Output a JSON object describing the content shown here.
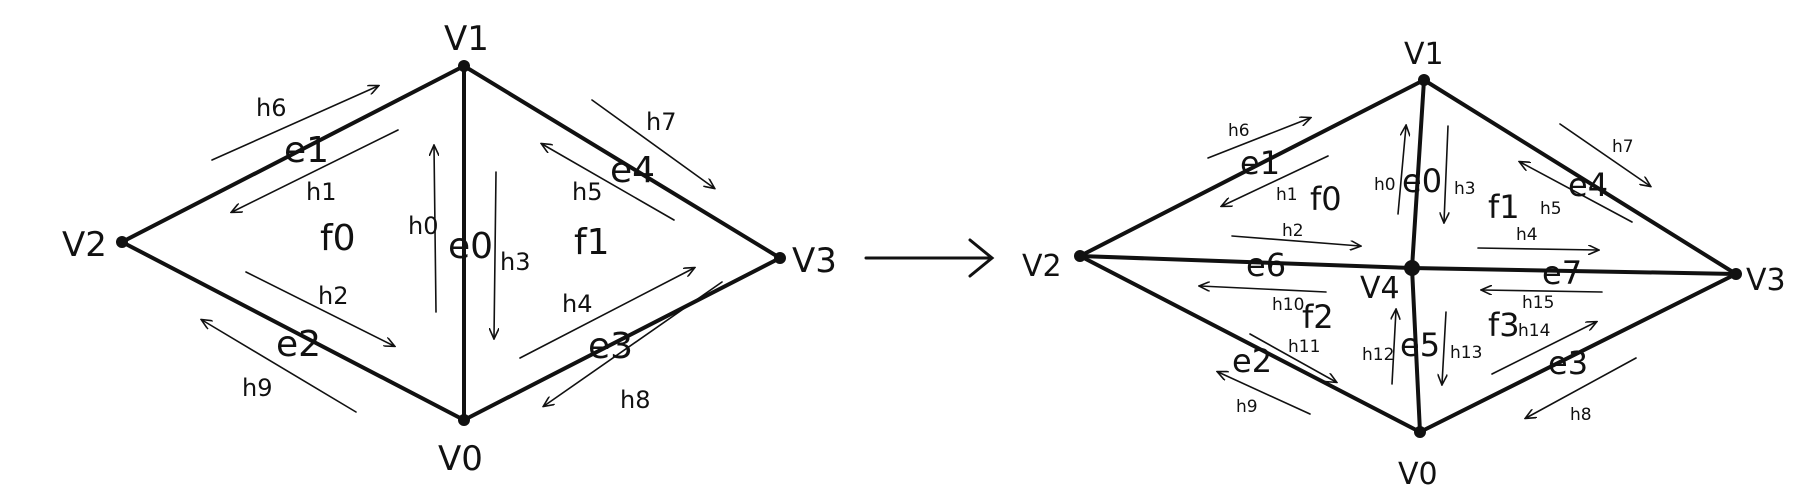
{
  "left": {
    "vertices": {
      "v0": "V0",
      "v1": "V1",
      "v2": "V2",
      "v3": "V3"
    },
    "edges": {
      "e0": "e0",
      "e1": "e1",
      "e2": "e2",
      "e3": "e3",
      "e4": "e4"
    },
    "faces": {
      "f0": "f0",
      "f1": "f1"
    },
    "halfedges": {
      "h0": "h0",
      "h1": "h1",
      "h2": "h2",
      "h3": "h3",
      "h4": "h4",
      "h5": "h5",
      "h6": "h6",
      "h7": "h7",
      "h8": "h8",
      "h9": "h9"
    }
  },
  "arrow": "→",
  "right": {
    "vertices": {
      "v0": "V0",
      "v1": "V1",
      "v2": "V2",
      "v3": "V3",
      "v4": "V4"
    },
    "edges": {
      "e0": "e0",
      "e1": "e1",
      "e2": "e2",
      "e3": "e3",
      "e4": "e4",
      "e5": "e5",
      "e6": "e6",
      "e7": "e7"
    },
    "faces": {
      "f0": "f0",
      "f1": "f1",
      "f2": "f2",
      "f3": "f3"
    },
    "halfedges": {
      "h0": "h0",
      "h1": "h1",
      "h2": "h2",
      "h3": "h3",
      "h4": "h4",
      "h5": "h5",
      "h6": "h6",
      "h7": "h7",
      "h8": "h8",
      "h9": "h9",
      "h10": "h10",
      "h11": "h11",
      "h12": "h12",
      "h13": "h13",
      "h14": "h14",
      "h15": "h15"
    }
  }
}
